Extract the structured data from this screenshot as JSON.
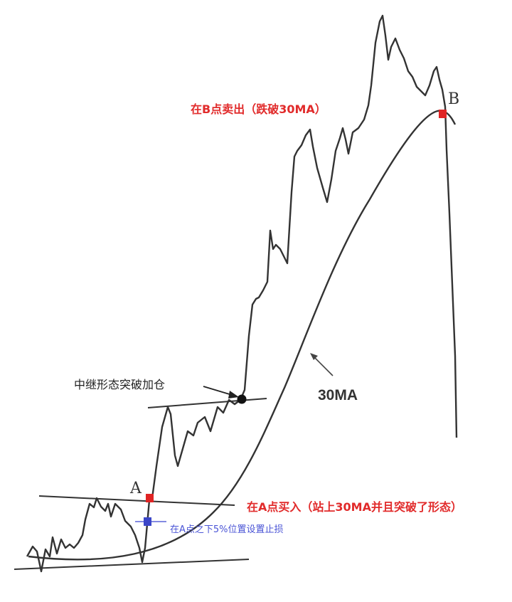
{
  "point_a": {
    "letter": "A",
    "color": "#e02424"
  },
  "point_b": {
    "letter": "B",
    "color": "#e02424"
  },
  "stop_marker": {
    "color": "#3b46c8"
  },
  "annotations": {
    "sell_b": "在B点卖出（跌破30MA）",
    "buy_a": "在A点买入（站上30MA并且突破了形态）",
    "stop_loss": "在A点之下5%位置设置止损",
    "relay_breakout": "中继形态突破加仓",
    "ma_label": "30MA"
  },
  "colors": {
    "price_line": "#333333",
    "red_text": "#e12b2b",
    "blue_text": "#4b55d6"
  }
}
